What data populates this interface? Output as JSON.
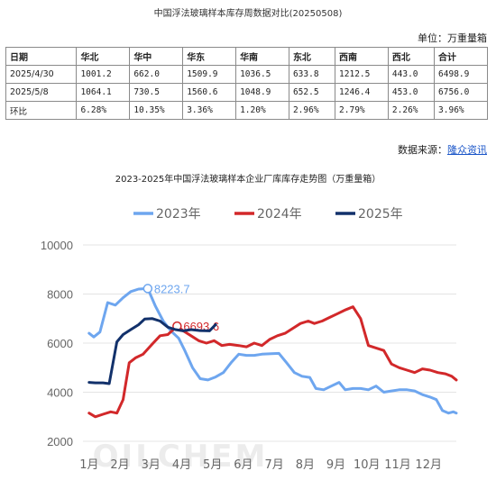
{
  "page_title": "中国浮法玻璃样本库存周数据对比(20250508)",
  "unit_label": "单位：万重量箱",
  "table": {
    "headers": [
      "日期",
      "华北",
      "华中",
      "华东",
      "华南",
      "东北",
      "西南",
      "西北",
      "合计"
    ],
    "rows": [
      [
        "2025/4/30",
        "1001.2",
        "662.0",
        "1509.9",
        "1036.5",
        "633.8",
        "1212.5",
        "443.0",
        "6498.9"
      ],
      [
        "2025/5/8",
        "1064.1",
        "730.5",
        "1560.6",
        "1048.9",
        "652.5",
        "1246.4",
        "453.0",
        "6756.0"
      ],
      [
        "环比",
        "6.28%",
        "10.35%",
        "3.36%",
        "1.20%",
        "2.96%",
        "2.79%",
        "2.26%",
        "3.96%"
      ]
    ]
  },
  "source_prefix": "数据来源：",
  "source_link": "隆众资讯",
  "chart_data": {
    "type": "line",
    "title": "2023-2025年中国浮法玻璃样本企业厂库库存走势图（万重量箱）",
    "watermark": "OILCHEM",
    "ylim": [
      2000,
      10000
    ],
    "yticks": [
      2000,
      4000,
      6000,
      8000,
      10000
    ],
    "xlim": [
      0.8,
      12.9
    ],
    "xtick_labels": [
      "1月",
      "2月",
      "3月",
      "4月",
      "5月",
      "6月",
      "7月",
      "8月",
      "9月",
      "10月",
      "11月",
      "12月"
    ],
    "grid": "horizontal",
    "legend_position": "top",
    "series": [
      {
        "name": "2023年",
        "color": "#6ea6ef",
        "points": [
          [
            1.0,
            6400
          ],
          [
            1.15,
            6250
          ],
          [
            1.35,
            6450
          ],
          [
            1.6,
            7650
          ],
          [
            1.85,
            7550
          ],
          [
            2.1,
            7850
          ],
          [
            2.35,
            8100
          ],
          [
            2.6,
            8200
          ],
          [
            2.9,
            8223.7
          ],
          [
            3.15,
            7500
          ],
          [
            3.4,
            6900
          ],
          [
            3.65,
            6500
          ],
          [
            3.9,
            6200
          ],
          [
            4.1,
            5700
          ],
          [
            4.35,
            5000
          ],
          [
            4.6,
            4550
          ],
          [
            4.85,
            4500
          ],
          [
            5.1,
            4620
          ],
          [
            5.35,
            4800
          ],
          [
            5.6,
            5200
          ],
          [
            5.85,
            5550
          ],
          [
            6.1,
            5500
          ],
          [
            6.35,
            5500
          ],
          [
            6.6,
            5550
          ],
          [
            6.9,
            5570
          ],
          [
            7.15,
            5580
          ],
          [
            7.4,
            5200
          ],
          [
            7.65,
            4800
          ],
          [
            7.9,
            4650
          ],
          [
            8.15,
            4600
          ],
          [
            8.35,
            4150
          ],
          [
            8.6,
            4100
          ],
          [
            8.85,
            4250
          ],
          [
            9.1,
            4400
          ],
          [
            9.3,
            4100
          ],
          [
            9.55,
            4150
          ],
          [
            9.8,
            4150
          ],
          [
            10.05,
            4100
          ],
          [
            10.3,
            4250
          ],
          [
            10.55,
            4000
          ],
          [
            10.8,
            4050
          ],
          [
            11.05,
            4100
          ],
          [
            11.3,
            4100
          ],
          [
            11.55,
            4050
          ],
          [
            11.8,
            3900
          ],
          [
            12.05,
            3800
          ],
          [
            12.25,
            3700
          ],
          [
            12.45,
            3250
          ],
          [
            12.65,
            3150
          ],
          [
            12.8,
            3200
          ],
          [
            12.9,
            3150
          ]
        ],
        "annotation": {
          "text": "8223.7",
          "x": 2.9,
          "y": 8223.7
        }
      },
      {
        "name": "2024年",
        "color": "#d2282a",
        "points": [
          [
            1.0,
            3150
          ],
          [
            1.2,
            3000
          ],
          [
            1.45,
            3100
          ],
          [
            1.7,
            3200
          ],
          [
            1.9,
            3150
          ],
          [
            2.1,
            3700
          ],
          [
            2.3,
            5200
          ],
          [
            2.5,
            5400
          ],
          [
            2.75,
            5550
          ],
          [
            3.0,
            5900
          ],
          [
            3.3,
            6300
          ],
          [
            3.55,
            6350
          ],
          [
            3.85,
            6693.6
          ],
          [
            4.05,
            6500
          ],
          [
            4.3,
            6300
          ],
          [
            4.55,
            6100
          ],
          [
            4.8,
            6000
          ],
          [
            5.05,
            6100
          ],
          [
            5.3,
            5900
          ],
          [
            5.55,
            5950
          ],
          [
            5.85,
            5900
          ],
          [
            6.1,
            5850
          ],
          [
            6.35,
            6000
          ],
          [
            6.6,
            5900
          ],
          [
            6.85,
            6150
          ],
          [
            7.1,
            6300
          ],
          [
            7.35,
            6400
          ],
          [
            7.6,
            6600
          ],
          [
            7.85,
            6800
          ],
          [
            8.1,
            6900
          ],
          [
            8.3,
            6800
          ],
          [
            8.55,
            6900
          ],
          [
            8.8,
            7050
          ],
          [
            9.05,
            7200
          ],
          [
            9.3,
            7350
          ],
          [
            9.55,
            7478.9
          ],
          [
            9.8,
            7000
          ],
          [
            10.05,
            5900
          ],
          [
            10.3,
            5800
          ],
          [
            10.55,
            5700
          ],
          [
            10.8,
            5150
          ],
          [
            11.05,
            5000
          ],
          [
            11.3,
            4900
          ],
          [
            11.55,
            4800
          ],
          [
            11.8,
            4950
          ],
          [
            12.05,
            4900
          ],
          [
            12.3,
            4800
          ],
          [
            12.55,
            4750
          ],
          [
            12.75,
            4650
          ],
          [
            12.9,
            4500
          ]
        ],
        "annotation": {
          "text": "6693.6",
          "x": 3.85,
          "y": 6693.6
        }
      },
      {
        "name": "2025年",
        "color": "#12316b",
        "points": [
          [
            1.0,
            4400
          ],
          [
            1.2,
            4380
          ],
          [
            1.45,
            4380
          ],
          [
            1.65,
            4350
          ],
          [
            1.9,
            6050
          ],
          [
            2.1,
            6350
          ],
          [
            2.35,
            6550
          ],
          [
            2.6,
            6750
          ],
          [
            2.8,
            6980
          ],
          [
            3.05,
            7000
          ],
          [
            3.3,
            6900
          ],
          [
            3.55,
            6650
          ],
          [
            3.8,
            6550
          ],
          [
            4.05,
            6500
          ],
          [
            4.3,
            6550
          ],
          [
            4.6,
            6510
          ],
          [
            4.9,
            6500
          ],
          [
            5.1,
            6756
          ]
        ]
      }
    ],
    "annotation_prefix": "○"
  }
}
